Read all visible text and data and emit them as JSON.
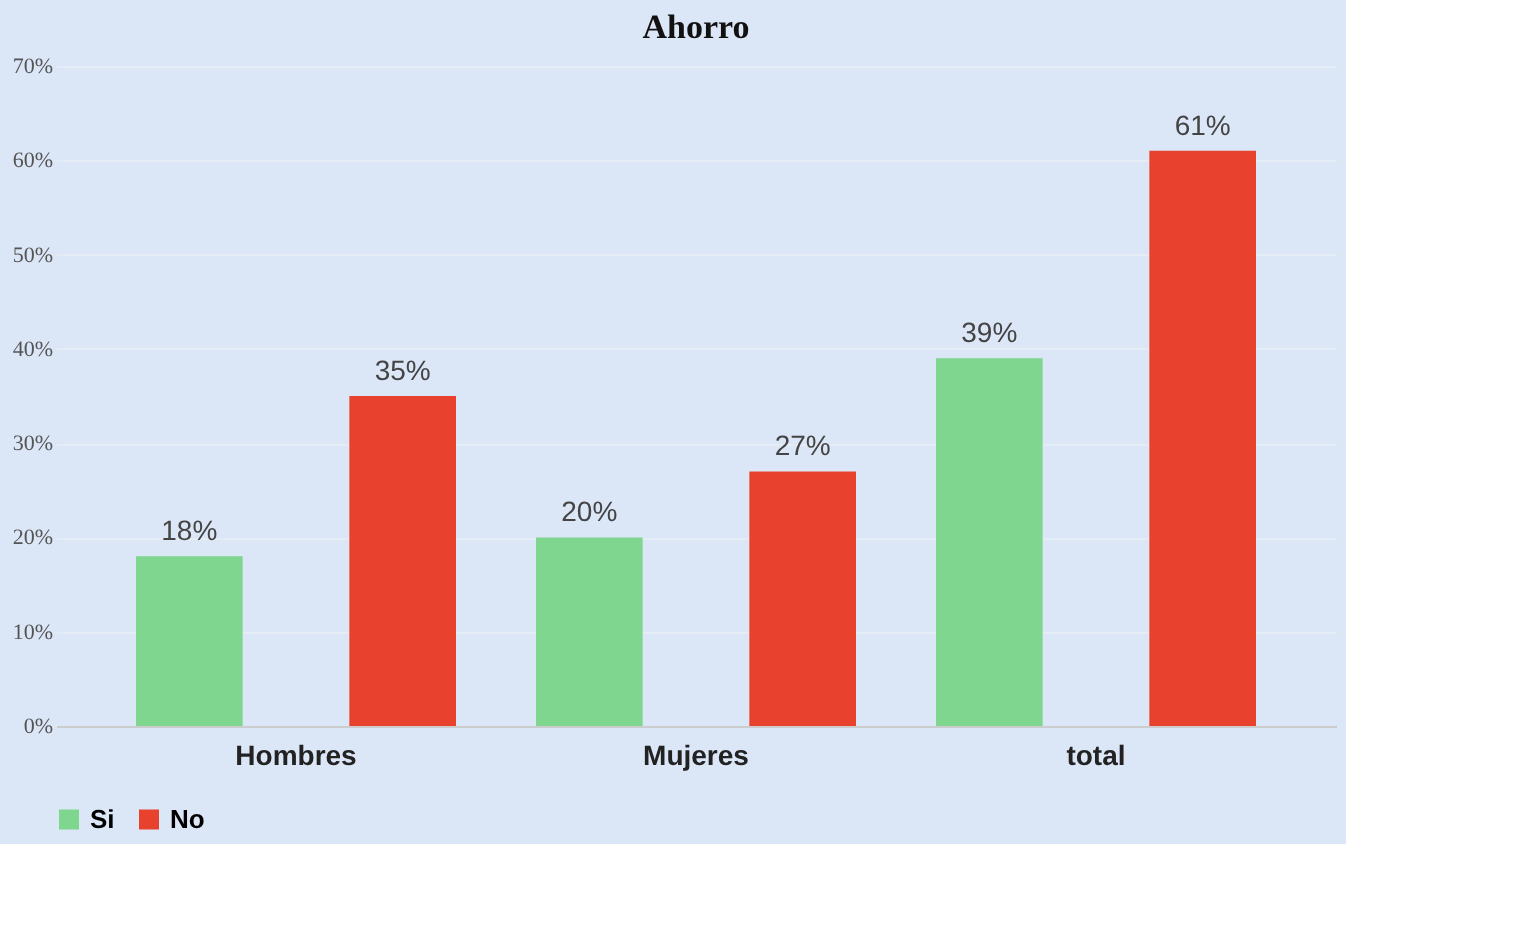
{
  "chart_data": {
    "type": "bar",
    "title": "Ahorro",
    "categories": [
      "Hombres",
      "Mujeres",
      "total"
    ],
    "series": [
      {
        "name": "Si",
        "color": "#7fd68e",
        "values": [
          18,
          20,
          39
        ],
        "value_labels": [
          "18%",
          "20%",
          "39%"
        ]
      },
      {
        "name": "No",
        "color": "#e8422f",
        "values": [
          35,
          27,
          61
        ],
        "value_labels": [
          "35%",
          "27%",
          "61%"
        ]
      }
    ],
    "ylim": [
      0,
      70
    ],
    "yticks": [
      {
        "value": 0,
        "label": "0%"
      },
      {
        "value": 10,
        "label": "10%"
      },
      {
        "value": 20,
        "label": "20%"
      },
      {
        "value": 30,
        "label": "30%"
      },
      {
        "value": 40,
        "label": "40%"
      },
      {
        "value": 50,
        "label": "50%"
      },
      {
        "value": 60,
        "label": "60%"
      },
      {
        "value": 70,
        "label": "70%"
      }
    ],
    "grid": "y",
    "legend": "bottom"
  }
}
